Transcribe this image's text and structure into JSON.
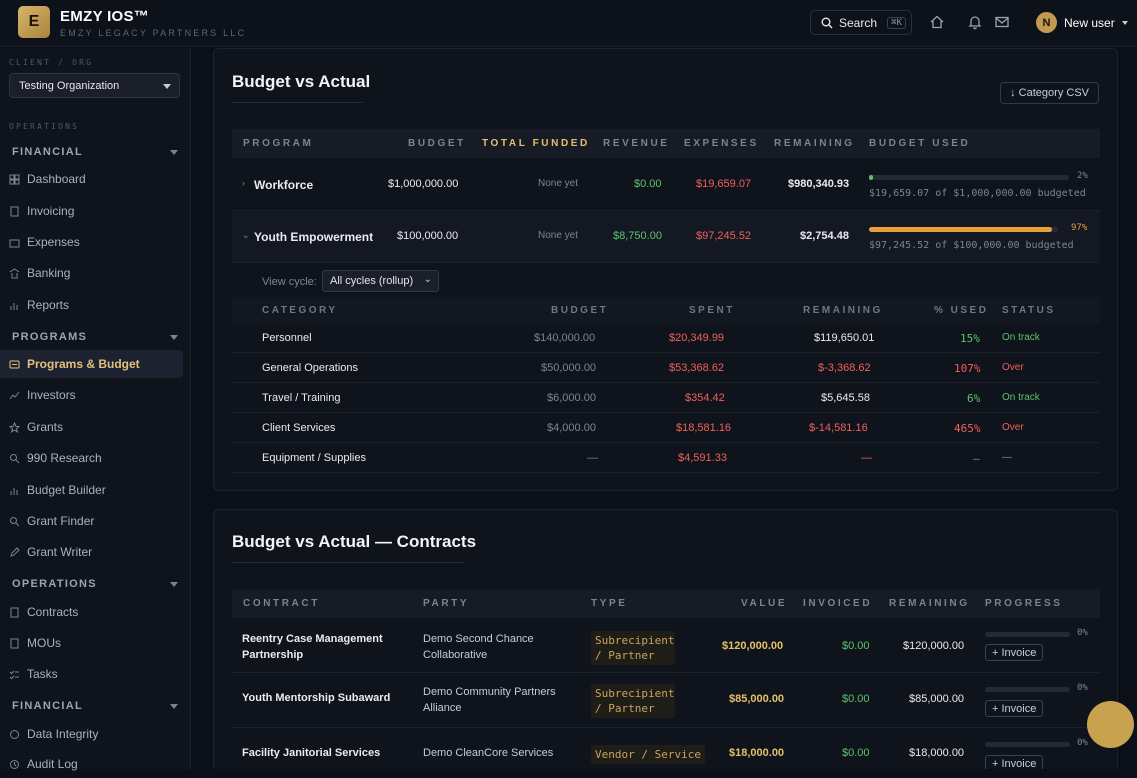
{
  "header": {
    "logo_letter": "E",
    "app_name": "EMZY IOS™",
    "org_name": "EMZY LEGACY PARTNERS LLC",
    "search_label": "Search",
    "search_shortcut": "⌘K",
    "user_initial": "N",
    "user_name": "New user"
  },
  "sidebar": {
    "client_label": "CLIENT / ORG",
    "org_selected": "Testing Organization",
    "operations_label": "OPERATIONS",
    "sections": [
      {
        "title": "FINANCIAL",
        "items": [
          "Dashboard",
          "Invoicing",
          "Expenses",
          "Banking",
          "Reports"
        ]
      },
      {
        "title": "PROGRAMS",
        "items": [
          "Programs & Budget",
          "Investors",
          "Grants",
          "990 Research",
          "Budget Builder",
          "Grant Finder",
          "Grant Writer"
        ]
      },
      {
        "title": "OPERATIONS",
        "items": [
          "Contracts",
          "MOUs",
          "Tasks"
        ]
      },
      {
        "title": "FINANCIAL",
        "items": [
          "Data Integrity",
          "Audit Log"
        ]
      }
    ],
    "active_item": "Programs & Budget"
  },
  "budget": {
    "title": "Budget vs Actual",
    "csv_button": "↓ Category CSV",
    "columns": [
      "PROGRAM",
      "BUDGET",
      "TOTAL FUNDED",
      "REVENUE",
      "EXPENSES",
      "REMAINING",
      "BUDGET USED"
    ],
    "programs": [
      {
        "name": "Workforce",
        "budget": "$1,000,000.00",
        "funded": "None yet",
        "revenue": "$0.00",
        "expenses": "$19,659.07",
        "remaining": "$980,340.93",
        "pct_label": "2%",
        "pct": 0.02,
        "note": "$19,659.07 of $1,000,000.00 budgeted",
        "expanded": false
      },
      {
        "name": "Youth Empowerment",
        "budget": "$100,000.00",
        "funded": "None yet",
        "revenue": "$8,750.00",
        "expenses": "$97,245.52",
        "remaining": "$2,754.48",
        "pct_label": "97%",
        "pct": 0.97,
        "note": "$97,245.52 of $100,000.00 budgeted",
        "expanded": true
      }
    ],
    "cycle_label": "View cycle:",
    "cycle_value": "All cycles (rollup)",
    "cat_columns": [
      "CATEGORY",
      "BUDGET",
      "SPENT",
      "REMAINING",
      "% USED",
      "STATUS"
    ],
    "categories": [
      {
        "name": "Personnel",
        "budget": "$140,000.00",
        "spent": "$20,349.99",
        "remaining": "$119,650.01",
        "used": "15%",
        "status": "On track",
        "over": false
      },
      {
        "name": "General Operations",
        "budget": "$50,000.00",
        "spent": "$53,368.62",
        "remaining": "$-3,368.62",
        "used": "107%",
        "status": "Over",
        "over": true
      },
      {
        "name": "Travel / Training",
        "budget": "$6,000.00",
        "spent": "$354.42",
        "remaining": "$5,645.58",
        "used": "6%",
        "status": "On track",
        "over": false
      },
      {
        "name": "Client Services",
        "budget": "$4,000.00",
        "spent": "$18,581.16",
        "remaining": "$-14,581.16",
        "used": "465%",
        "status": "Over",
        "over": true
      },
      {
        "name": "Equipment / Supplies",
        "budget": "—",
        "spent": "$4,591.33",
        "remaining": "—",
        "used": "—",
        "status": "—",
        "over": null
      }
    ]
  },
  "contracts": {
    "title": "Budget vs Actual — Contracts",
    "columns": [
      "CONTRACT",
      "PARTY",
      "TYPE",
      "VALUE",
      "INVOICED",
      "REMAINING",
      "PROGRESS"
    ],
    "rows": [
      {
        "name": "Reentry Case Management Partnership",
        "party": "Demo Second Chance Collaborative",
        "type": "Subrecipient / Partner",
        "value": "$120,000.00",
        "invoiced": "$0.00",
        "remaining": "$120,000.00",
        "progress_label": "0%",
        "progress": 0,
        "action": "+ Invoice"
      },
      {
        "name": "Youth Mentorship Subaward",
        "party": "Demo Community Partners Alliance",
        "type": "Subrecipient / Partner",
        "value": "$85,000.00",
        "invoiced": "$0.00",
        "remaining": "$85,000.00",
        "progress_label": "0%",
        "progress": 0,
        "action": "+ Invoice"
      },
      {
        "name": "Facility Janitorial Services",
        "party": "Demo CleanCore Services",
        "type": "Vendor / Service",
        "value": "$18,000.00",
        "invoiced": "$0.00",
        "remaining": "$18,000.00",
        "progress_label": "0%",
        "progress": 0,
        "action": "+ Invoice"
      }
    ]
  },
  "colors": {
    "accent": "#e5c06d",
    "positive": "#5cc46a",
    "negative": "#f0605a",
    "bar_low": "#5cc46a",
    "bar_high": "#e7a03c"
  }
}
